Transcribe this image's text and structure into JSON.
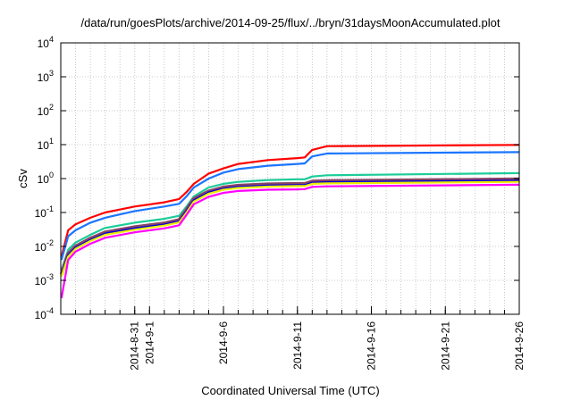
{
  "chart_data": {
    "type": "line",
    "title": "/data/run/goesPlots/archive/2014-09-25/flux/../bryn/31daysMoonAccumulated.plot",
    "xlabel": "Coordinated Universal Time (UTC)",
    "ylabel": "cSv",
    "yscale": "log",
    "ylim": [
      0.0001,
      10000
    ],
    "xlim_days_from_2014_08_26": [
      0,
      31
    ],
    "grid": true,
    "y_ticks": [
      {
        "value": 0.0001,
        "base": "10",
        "exp": "-4"
      },
      {
        "value": 0.001,
        "base": "10",
        "exp": "-3"
      },
      {
        "value": 0.01,
        "base": "10",
        "exp": "-2"
      },
      {
        "value": 0.1,
        "base": "10",
        "exp": "-1"
      },
      {
        "value": 1,
        "base": "10",
        "exp": "0"
      },
      {
        "value": 10,
        "base": "10",
        "exp": "1"
      },
      {
        "value": 100,
        "base": "10",
        "exp": "2"
      },
      {
        "value": 1000,
        "base": "10",
        "exp": "3"
      },
      {
        "value": 10000,
        "base": "10",
        "exp": "4"
      }
    ],
    "x_ticks": [
      {
        "day": 5,
        "label": "2014-8-31"
      },
      {
        "day": 6,
        "label": "2014-9-1"
      },
      {
        "day": 11,
        "label": "2014-9-6"
      },
      {
        "day": 16,
        "label": "2014-9-11"
      },
      {
        "day": 21,
        "label": "2014-9-16"
      },
      {
        "day": 26,
        "label": "2014-9-21"
      },
      {
        "day": 31,
        "label": "2014-9-26"
      }
    ],
    "x": [
      0.05,
      0.5,
      1,
      2,
      3,
      5,
      7,
      8,
      8.5,
      9,
      10,
      11,
      12,
      14,
      16,
      16.5,
      17,
      18,
      31
    ],
    "series": [
      {
        "name": "red",
        "color": "#ff0000",
        "values": [
          0.005,
          0.03,
          0.045,
          0.07,
          0.1,
          0.15,
          0.2,
          0.25,
          0.4,
          0.7,
          1.4,
          2.0,
          2.7,
          3.5,
          4.0,
          4.2,
          7,
          9,
          9.8
        ]
      },
      {
        "name": "blue",
        "color": "#1a75ff",
        "values": [
          0.004,
          0.02,
          0.03,
          0.05,
          0.07,
          0.11,
          0.15,
          0.18,
          0.3,
          0.55,
          1.0,
          1.5,
          1.9,
          2.4,
          2.7,
          2.8,
          4.5,
          5.5,
          6
        ]
      },
      {
        "name": "teal",
        "color": "#1ccc99",
        "values": [
          0.002,
          0.008,
          0.013,
          0.022,
          0.035,
          0.05,
          0.065,
          0.08,
          0.15,
          0.3,
          0.55,
          0.7,
          0.8,
          0.9,
          0.95,
          0.95,
          1.15,
          1.25,
          1.45
        ]
      },
      {
        "name": "purple",
        "color": "#884466",
        "values": [
          0.0015,
          0.006,
          0.01,
          0.017,
          0.026,
          0.037,
          0.048,
          0.06,
          0.12,
          0.25,
          0.42,
          0.55,
          0.62,
          0.68,
          0.7,
          0.7,
          0.82,
          0.85,
          0.95
        ]
      },
      {
        "name": "dark-blue",
        "color": "#0000dd",
        "values": [
          0.0014,
          0.0055,
          0.0092,
          0.0156,
          0.024,
          0.034,
          0.044,
          0.055,
          0.11,
          0.23,
          0.39,
          0.5,
          0.57,
          0.62,
          0.64,
          0.64,
          0.75,
          0.78,
          0.87
        ]
      },
      {
        "name": "yellow",
        "color": "#eeee00",
        "values": [
          0.0013,
          0.005,
          0.0085,
          0.0145,
          0.022,
          0.031,
          0.041,
          0.051,
          0.1,
          0.21,
          0.36,
          0.47,
          0.53,
          0.58,
          0.6,
          0.6,
          0.7,
          0.72,
          0.8
        ]
      },
      {
        "name": "magenta",
        "color": "#ff00ff",
        "values": [
          0.0003,
          0.004,
          0.007,
          0.012,
          0.018,
          0.026,
          0.034,
          0.042,
          0.085,
          0.175,
          0.29,
          0.38,
          0.43,
          0.47,
          0.48,
          0.49,
          0.57,
          0.59,
          0.66
        ]
      }
    ]
  }
}
